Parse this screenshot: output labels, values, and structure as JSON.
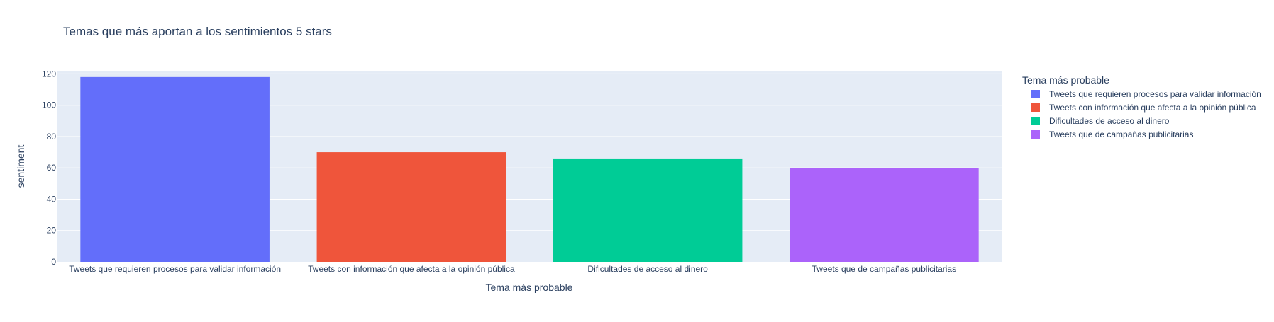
{
  "chart_data": {
    "type": "bar",
    "title": "Temas que más aportan a los sentimientos 5 stars",
    "xlabel": "Tema más probable",
    "ylabel": "sentiment",
    "ylim": [
      0,
      122
    ],
    "yticks": [
      0,
      20,
      40,
      60,
      80,
      100,
      120
    ],
    "ytick_labels": [
      "0",
      "20",
      "40",
      "60",
      "80",
      "100",
      "120"
    ],
    "categories": [
      "Tweets que requieren procesos para validar información",
      "Tweets con información que afecta a la opinión pública",
      "Dificultades de acceso al dinero",
      "Tweets que de campañas publicitarias"
    ],
    "values": [
      118,
      70,
      66,
      60
    ],
    "colors": [
      "#636efa",
      "#ef553b",
      "#00cc96",
      "#ab63fa"
    ],
    "grid": true,
    "plot_background": "#e5ecf6",
    "legend": {
      "title": "Tema más probable",
      "placement": "right",
      "entries": [
        "Tweets que requieren procesos para validar información",
        "Tweets con información que afecta a la opinión pública",
        "Dificultades de acceso al dinero",
        "Tweets que de campañas publicitarias"
      ]
    }
  }
}
